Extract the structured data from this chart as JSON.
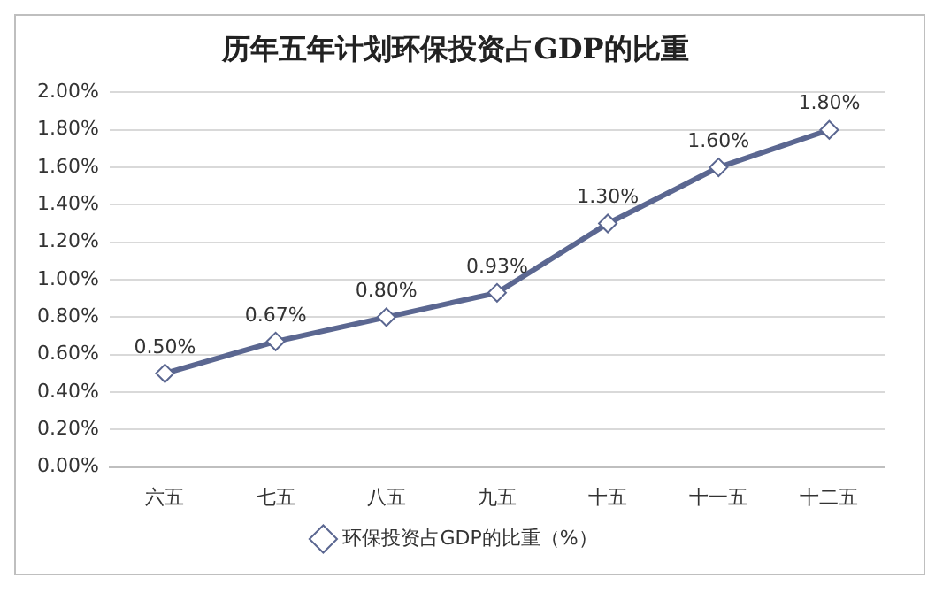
{
  "chart_data": {
    "type": "line",
    "title": "历年五年计划环保投资占GDP的比重",
    "categories": [
      "六五",
      "七五",
      "八五",
      "九五",
      "十五",
      "十一五",
      "十二五"
    ],
    "series": [
      {
        "name": "环保投资占GDP的比重（%）",
        "color": "#5b6791",
        "values": [
          0.5,
          0.67,
          0.8,
          0.93,
          1.3,
          1.6,
          1.8
        ],
        "value_labels": [
          "0.50%",
          "0.67%",
          "0.80%",
          "0.93%",
          "1.30%",
          "1.60%",
          "1.80%"
        ]
      }
    ],
    "ylim": [
      0,
      2
    ],
    "yticks": [
      {
        "value": 0,
        "label": "0.00%"
      },
      {
        "value": 0.2,
        "label": "0.20%"
      },
      {
        "value": 0.4,
        "label": "0.40%"
      },
      {
        "value": 0.6,
        "label": "0.60%"
      },
      {
        "value": 0.8,
        "label": "0.80%"
      },
      {
        "value": 1,
        "label": "1.00%"
      },
      {
        "value": 1.2,
        "label": "1.20%"
      },
      {
        "value": 1.4,
        "label": "1.40%"
      },
      {
        "value": 1.6,
        "label": "1.60%"
      },
      {
        "value": 1.8,
        "label": "1.80%"
      },
      {
        "value": 2,
        "label": "2.00%"
      }
    ],
    "grid": "y",
    "legend": "bottom",
    "marker": "diamond",
    "line_style": "solid"
  }
}
